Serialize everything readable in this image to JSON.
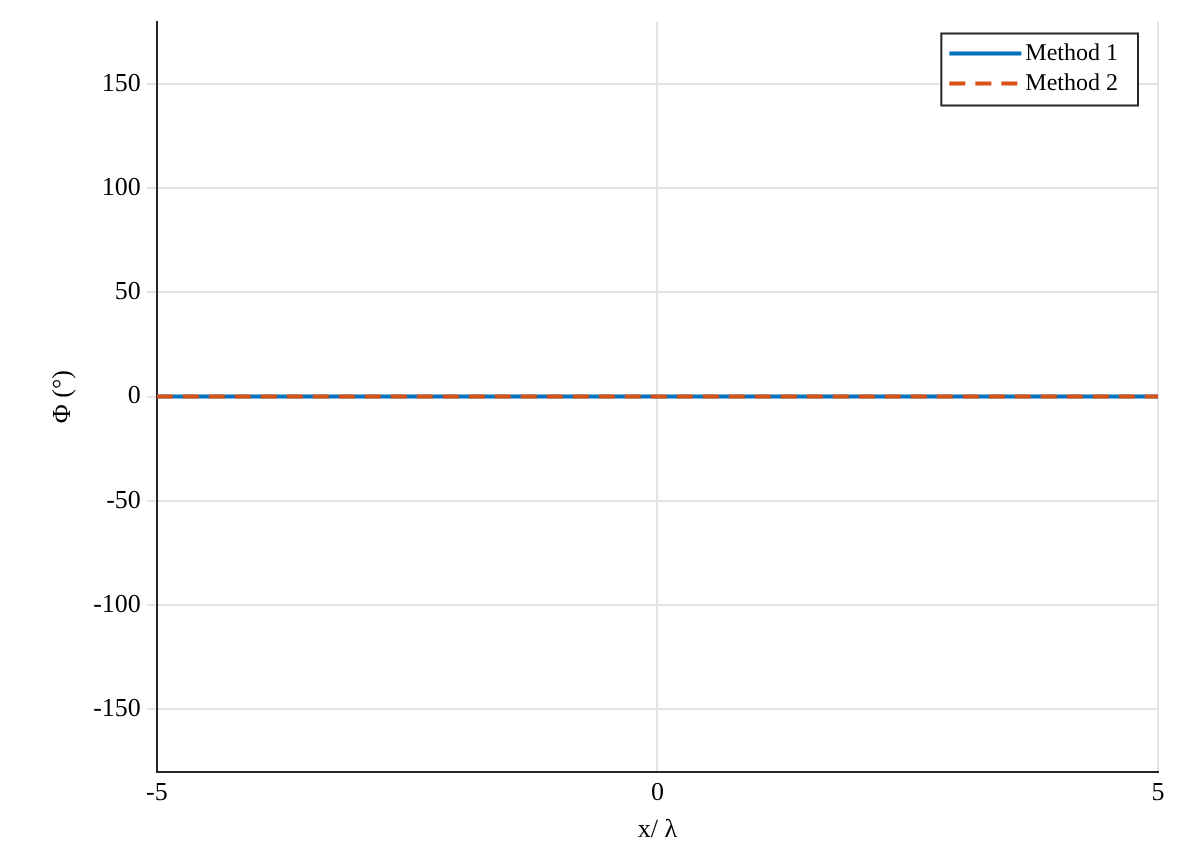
{
  "chart_data": {
    "type": "line",
    "xlabel": "x/ λ",
    "ylabel": "Φ (°)",
    "x": [
      -5,
      5
    ],
    "series": [
      {
        "name": "Method 1",
        "color": "#0072bd",
        "values": [
          0,
          0
        ],
        "line_style": "solid"
      },
      {
        "name": "Method 2",
        "color": "#d95319",
        "values": [
          0,
          0
        ],
        "line_style": "dashed"
      }
    ],
    "xlim": [
      -5,
      5
    ],
    "xticks": [
      -5,
      0,
      5
    ],
    "ylim": [
      -180,
      180
    ],
    "yticks": [
      -150,
      -100,
      -50,
      0,
      50,
      100,
      150
    ],
    "grid": true,
    "legend": "top right",
    "marker": "none"
  }
}
